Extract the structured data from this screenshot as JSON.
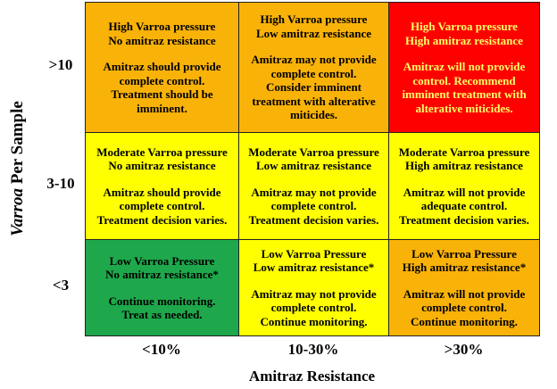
{
  "y_axis_label": {
    "italic": "Varroa",
    "rest": "Per Sample"
  },
  "x_axis_label": "Amitraz Resistance",
  "columns": [
    "<10%",
    "10-30%",
    ">30%"
  ],
  "rows": [
    {
      "label": ">10",
      "cells": [
        {
          "color": "#f9b208",
          "text_color": "#000000",
          "header": [
            "High Varroa pressure",
            "No amitraz resistance"
          ],
          "body": [
            "Amitraz should provide",
            "complete control.",
            "Treatment should be",
            "imminent."
          ]
        },
        {
          "color": "#f9b208",
          "text_color": "#000000",
          "header": [
            "High Varroa pressure",
            "Low amitraz resistance"
          ],
          "body": [
            "Amitraz may not provide",
            "complete control.",
            "Consider imminent",
            "treatment with alterative",
            "miticides."
          ]
        },
        {
          "color": "#ff0000",
          "text_color": "#ffff66",
          "header": [
            "High Varroa pressure",
            "High amitraz resistance"
          ],
          "body": [
            "Amitraz will not provide",
            "control. Recommend",
            "imminent treatment with",
            "alterative miticides."
          ]
        }
      ]
    },
    {
      "label": "3-10",
      "cells": [
        {
          "color": "#ffff00",
          "text_color": "#000000",
          "header": [
            "Moderate Varroa pressure",
            "No amitraz resistance"
          ],
          "body": [
            "Amitraz should provide",
            "complete control.",
            "Treatment decision varies."
          ]
        },
        {
          "color": "#ffff00",
          "text_color": "#000000",
          "header": [
            "Moderate Varroa pressure",
            "Low amitraz resistance"
          ],
          "body": [
            "Amitraz may not provide",
            "complete control.",
            "Treatment decision varies."
          ]
        },
        {
          "color": "#ffff00",
          "text_color": "#000000",
          "header": [
            "Moderate Varroa pressure",
            "High amitraz resistance"
          ],
          "body": [
            "Amitraz will not provide",
            "adequate control.",
            "Treatment decision varies."
          ]
        }
      ]
    },
    {
      "label": "<3",
      "cells": [
        {
          "color": "#1ea84b",
          "text_color": "#000000",
          "header": [
            "Low Varroa Pressure",
            "No amitraz resistance*"
          ],
          "body": [
            "Continue monitoring.",
            "Treat as needed."
          ]
        },
        {
          "color": "#ffff00",
          "text_color": "#000000",
          "header": [
            "Low Varroa Pressure",
            "Low amitraz resistance*"
          ],
          "body": [
            "Amitraz may not provide",
            "complete control.",
            "Continue monitoring."
          ]
        },
        {
          "color": "#f9b208",
          "text_color": "#000000",
          "header": [
            "Low Varroa Pressure",
            "High amitraz resistance*"
          ],
          "body": [
            "Amitraz will not provide",
            "complete control.",
            "Continue monitoring."
          ]
        }
      ]
    }
  ]
}
